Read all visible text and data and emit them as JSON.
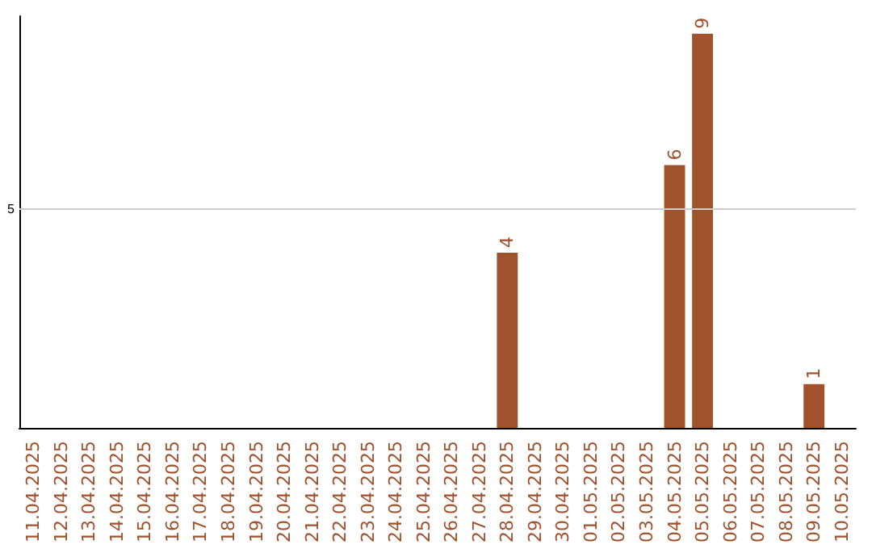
{
  "chart_data": {
    "type": "bar",
    "ylim": [
      0,
      9.4
    ],
    "categories": [
      "11.04.2025",
      "12.04.2025",
      "13.04.2025",
      "14.04.2025",
      "15.04.2025",
      "16.04.2025",
      "17.04.2025",
      "18.04.2025",
      "19.04.2025",
      "20.04.2025",
      "21.04.2025",
      "22.04.2025",
      "23.04.2025",
      "24.04.2025",
      "25.04.2025",
      "26.04.2025",
      "27.04.2025",
      "28.04.2025",
      "29.04.2025",
      "30.04.2025",
      "01.05.2025",
      "02.05.2025",
      "03.05.2025",
      "04.05.2025",
      "05.05.2025",
      "06.05.2025",
      "07.05.2025",
      "08.05.2025",
      "09.05.2025",
      "10.05.2025"
    ],
    "values": [
      null,
      null,
      null,
      null,
      null,
      null,
      null,
      null,
      null,
      null,
      null,
      null,
      null,
      null,
      null,
      null,
      null,
      4,
      null,
      null,
      null,
      null,
      null,
      6,
      9,
      null,
      null,
      null,
      1,
      null
    ],
    "value_labels": [
      null,
      null,
      null,
      null,
      null,
      null,
      null,
      null,
      null,
      null,
      null,
      null,
      null,
      null,
      null,
      null,
      null,
      "4",
      null,
      null,
      null,
      null,
      null,
      "6",
      "9",
      null,
      null,
      null,
      "1",
      null
    ],
    "color": "#a0522d",
    "ref_lines": [
      {
        "axis": "y",
        "value": 5,
        "label": "5",
        "color": "#cccccc"
      }
    ]
  }
}
